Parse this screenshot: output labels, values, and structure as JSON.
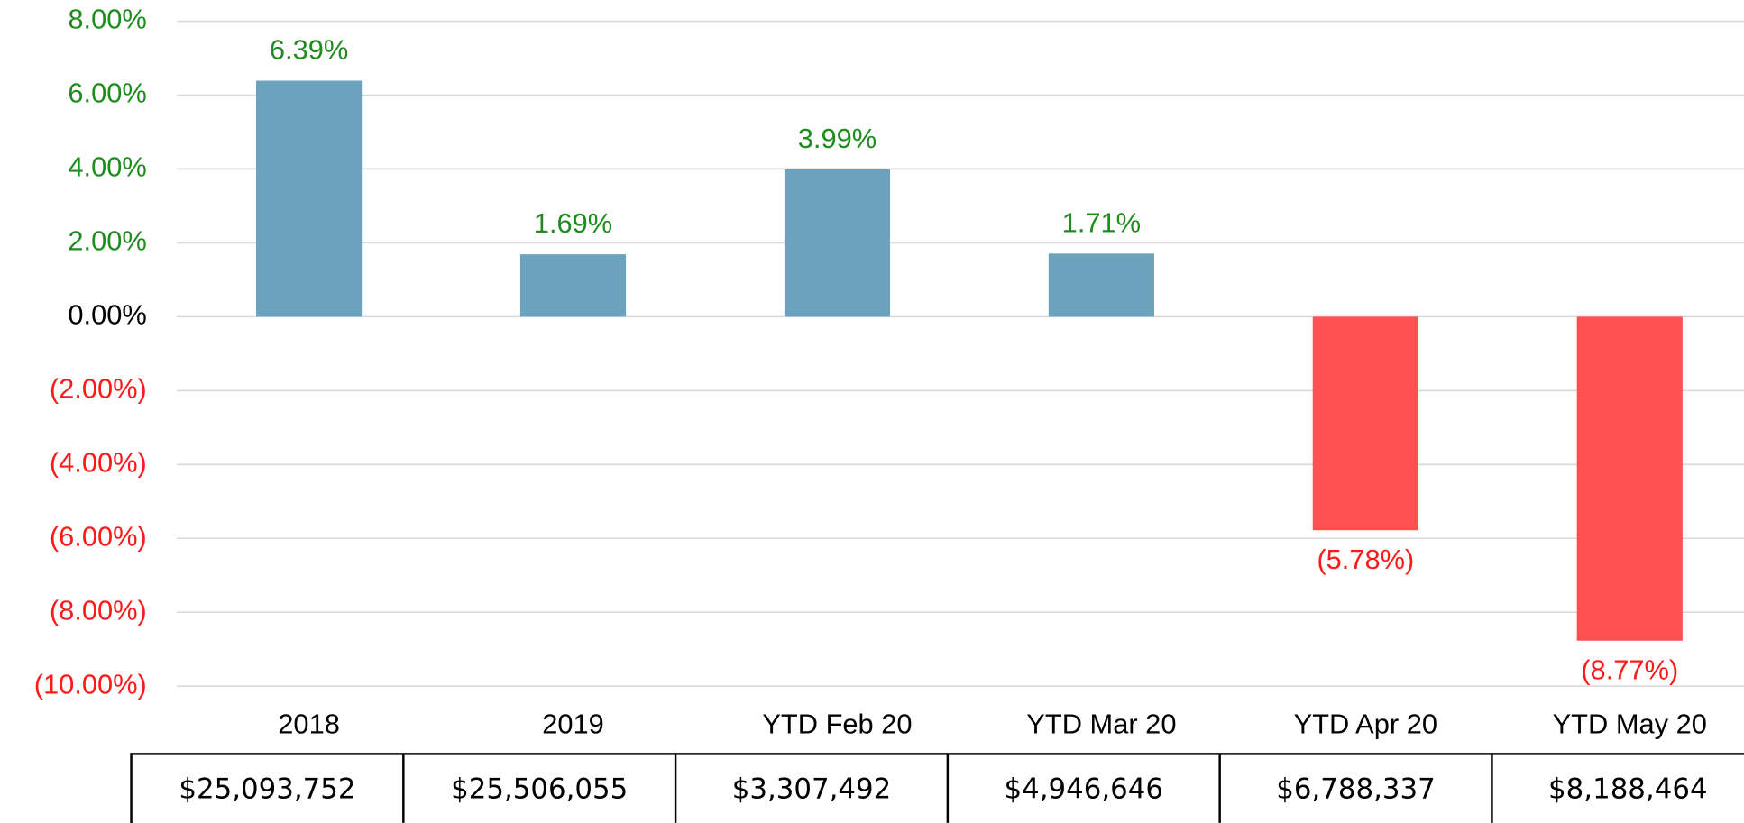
{
  "chart_data": {
    "type": "bar",
    "categories": [
      "2018",
      "2019",
      "YTD Feb 20",
      "YTD  Mar 20",
      "YTD Apr 20",
      "YTD May 20"
    ],
    "values": [
      6.39,
      1.69,
      3.99,
      1.71,
      -5.78,
      -8.77
    ],
    "value_labels": [
      "6.39%",
      "1.69%",
      "3.99%",
      "1.71%",
      "(5.78%)",
      "(8.77%)"
    ],
    "positive_color": "#6aa3bb",
    "negative_color": "#ff5050",
    "positive_label_color": "#1e8c1e",
    "negative_label_color": "#ff1a1a",
    "ylim": [
      -10,
      8
    ],
    "yticks": [
      {
        "value": -10,
        "label": "(10.00%)"
      },
      {
        "value": -8,
        "label": "(8.00%)"
      },
      {
        "value": -6,
        "label": "(6.00%)"
      },
      {
        "value": -4,
        "label": "(4.00%)"
      },
      {
        "value": -2,
        "label": "(2.00%)"
      },
      {
        "value": 0,
        "label": "0.00%"
      },
      {
        "value": 2,
        "label": "2.00%"
      },
      {
        "value": 4,
        "label": "4.00%"
      },
      {
        "value": 6,
        "label": "6.00%"
      },
      {
        "value": 8,
        "label": "8.00%"
      }
    ],
    "grid": true,
    "table": [
      "$25,093,752",
      "$25,506,055",
      "$3,307,492",
      "$4,946,646",
      "$6,788,337",
      "$8,188,464"
    ]
  }
}
